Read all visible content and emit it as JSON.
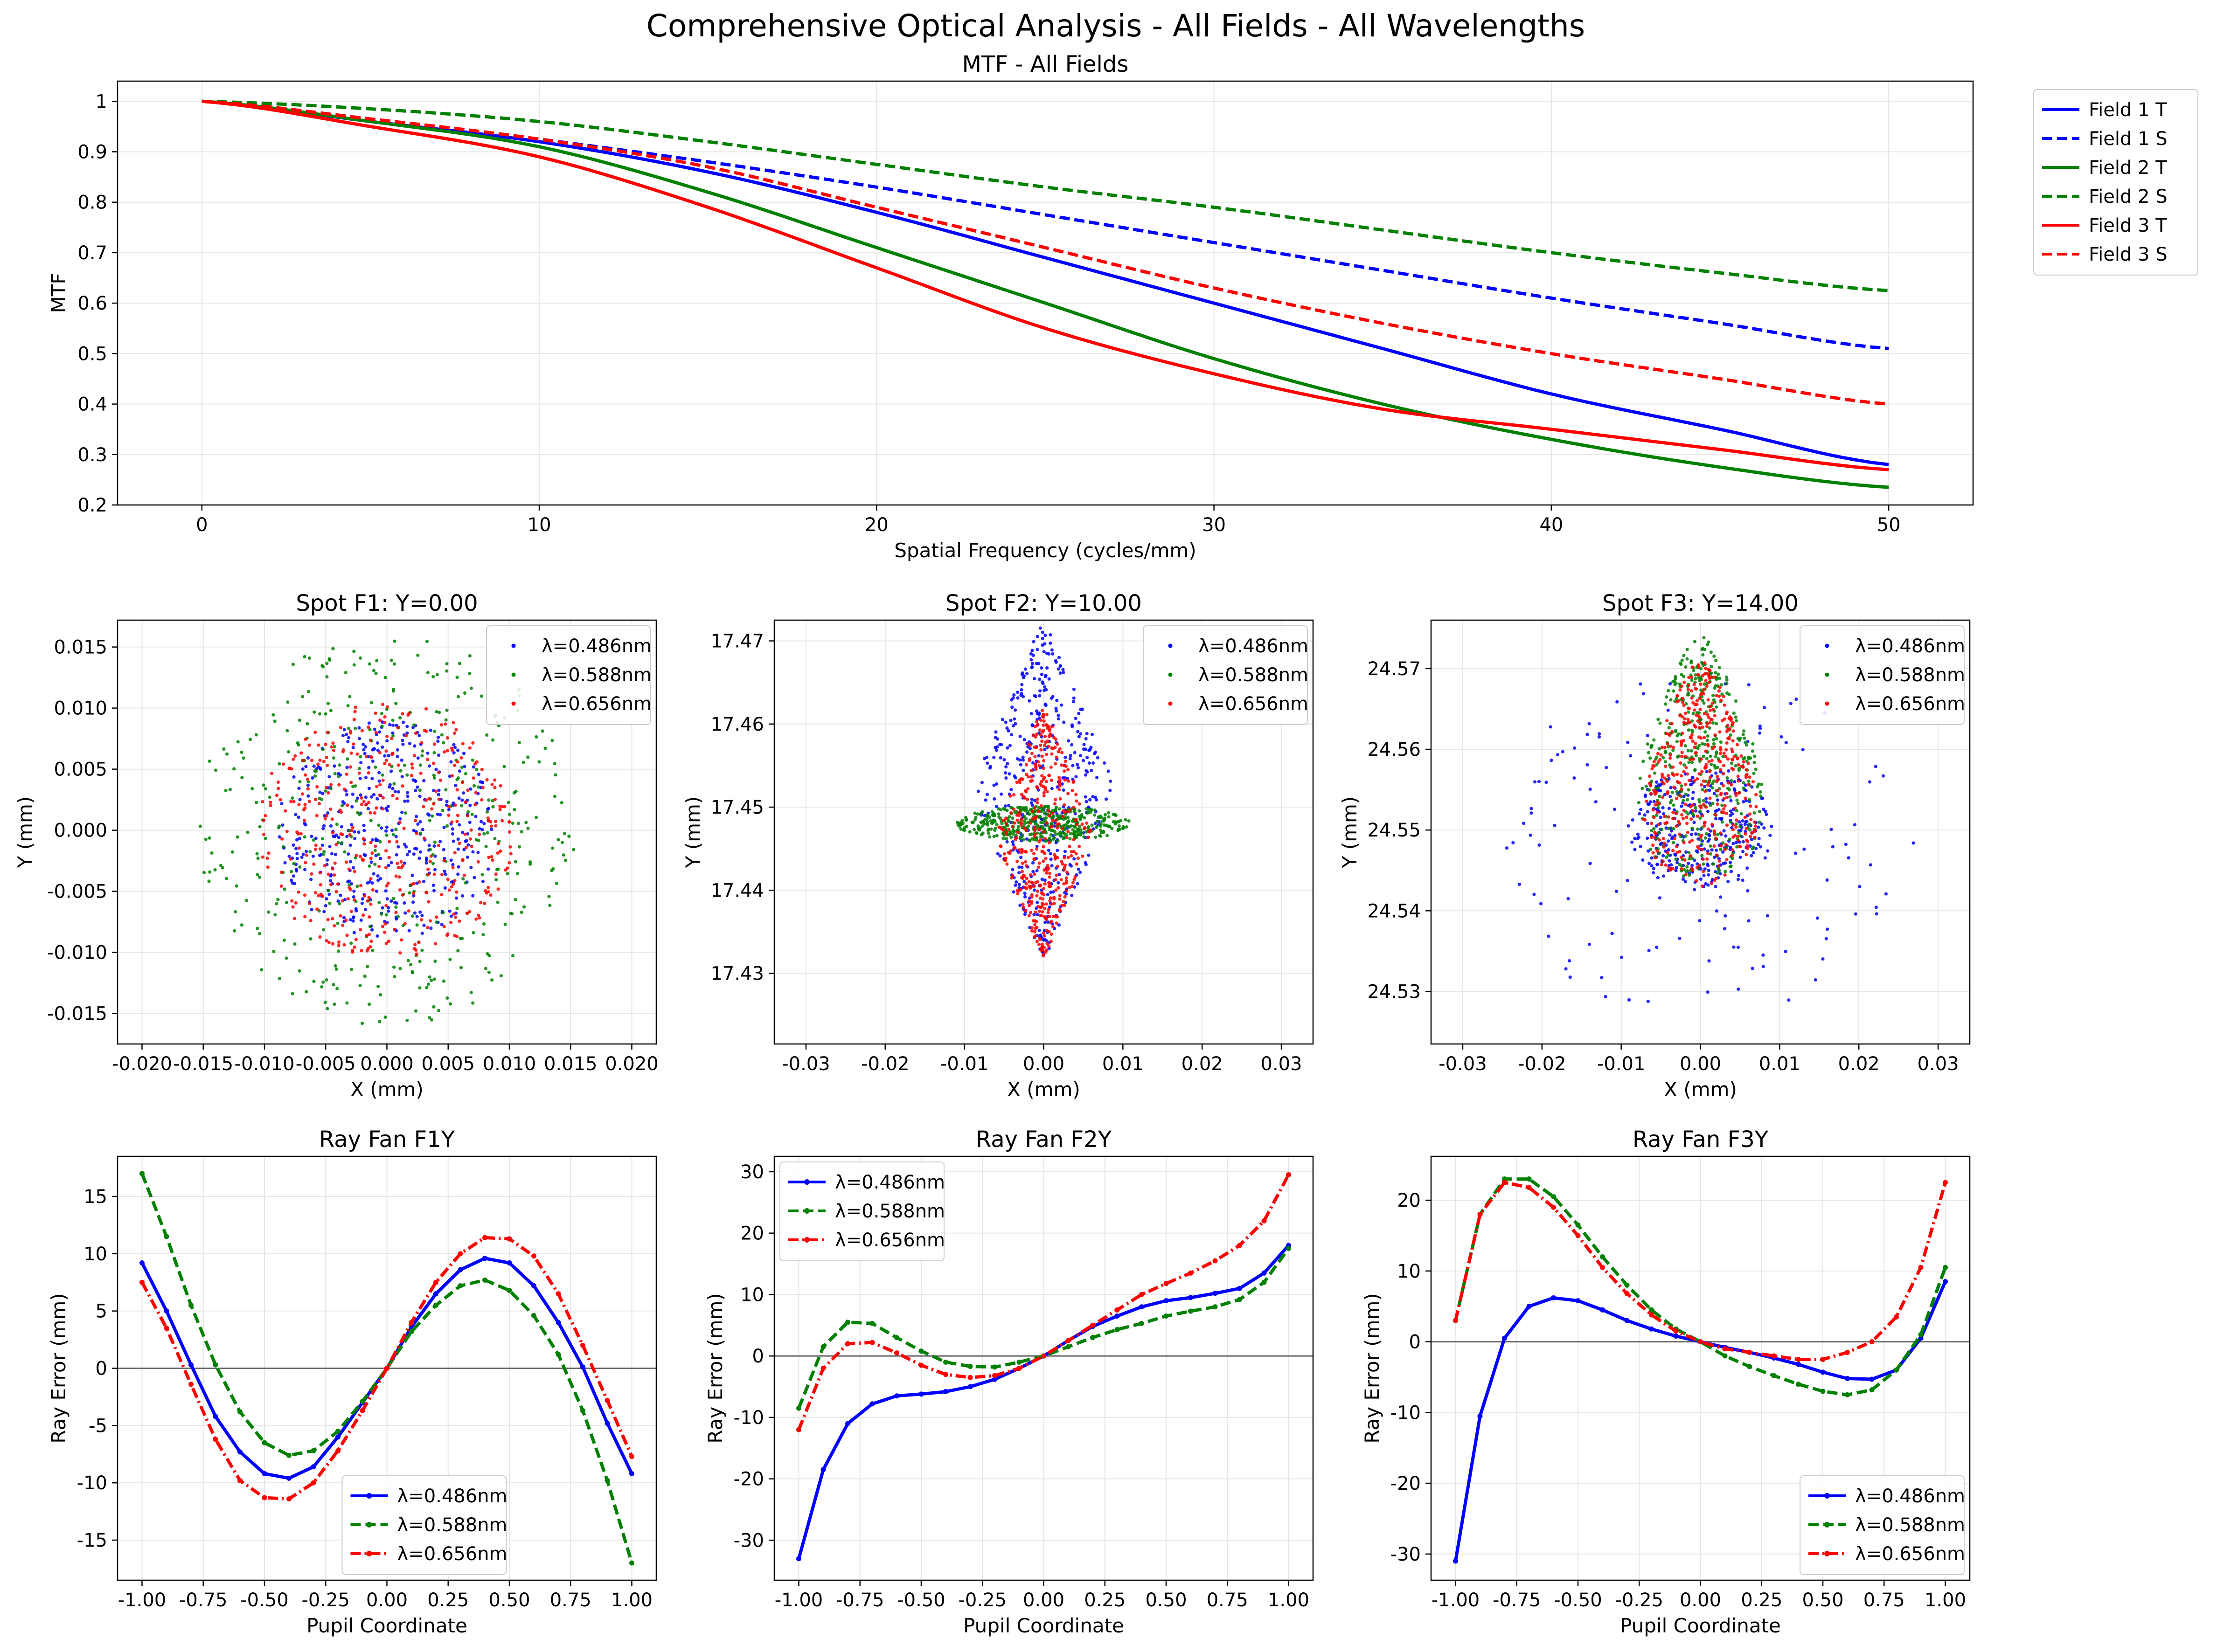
{
  "figure": {
    "title": "Comprehensive Optical Analysis - All Fields - All Wavelengths"
  },
  "chart_data": [
    {
      "id": "mtf",
      "type": "line",
      "title": "MTF - All Fields",
      "xlabel": "Spatial Frequency (cycles/mm)",
      "ylabel": "MTF",
      "xlim": [
        -2.5,
        52.5
      ],
      "ylim": [
        0.2,
        1.04
      ],
      "xticks": [
        0,
        10,
        20,
        30,
        40,
        50
      ],
      "yticks": [
        0.2,
        0.3,
        0.4,
        0.5,
        0.6,
        0.7,
        0.8,
        0.9,
        1.0
      ],
      "grid": true,
      "legend_position": "outside-right",
      "x": [
        0,
        5,
        10,
        15,
        20,
        25,
        30,
        35,
        40,
        45,
        50
      ],
      "series": [
        {
          "name": "Field 1 T",
          "color": "#0000ff",
          "dash": "solid",
          "values": [
            1.0,
            0.96,
            0.92,
            0.86,
            0.78,
            0.69,
            0.6,
            0.51,
            0.42,
            0.35,
            0.28
          ]
        },
        {
          "name": "Field 1 S",
          "color": "#0000ff",
          "dash": "dashed",
          "values": [
            1.0,
            0.965,
            0.925,
            0.88,
            0.83,
            0.775,
            0.72,
            0.665,
            0.61,
            0.56,
            0.51
          ]
        },
        {
          "name": "Field 2 T",
          "color": "#008000",
          "dash": "solid",
          "values": [
            1.0,
            0.96,
            0.91,
            0.82,
            0.71,
            0.6,
            0.49,
            0.4,
            0.33,
            0.275,
            0.235
          ]
        },
        {
          "name": "Field 2 S",
          "color": "#008000",
          "dash": "dashed",
          "values": [
            1.0,
            0.985,
            0.96,
            0.92,
            0.875,
            0.83,
            0.79,
            0.745,
            0.7,
            0.66,
            0.625
          ]
        },
        {
          "name": "Field 3 T",
          "color": "#ff0000",
          "dash": "solid",
          "values": [
            1.0,
            0.95,
            0.89,
            0.79,
            0.67,
            0.55,
            0.46,
            0.39,
            0.35,
            0.31,
            0.27
          ]
        },
        {
          "name": "Field 3 S",
          "color": "#ff0000",
          "dash": "dashed",
          "values": [
            1.0,
            0.965,
            0.925,
            0.87,
            0.79,
            0.71,
            0.63,
            0.56,
            0.5,
            0.45,
            0.4
          ]
        }
      ]
    },
    {
      "id": "spot1",
      "type": "scatter",
      "title": "Spot F1: Y=0.00",
      "xlabel": "X (mm)",
      "ylabel": "Y (mm)",
      "xlim": [
        -0.022,
        0.022
      ],
      "ylim": [
        -0.0175,
        0.0172
      ],
      "xticks": [
        -0.02,
        -0.015,
        -0.01,
        -0.005,
        0,
        0.005,
        0.01,
        0.015,
        0.02
      ],
      "xtick_labels": [
        "-0.020",
        "-0.015",
        "-0.010",
        "-0.005",
        "0.000",
        "0.005",
        "0.010",
        "0.015",
        "0.020"
      ],
      "yticks": [
        -0.015,
        -0.01,
        -0.005,
        0,
        0.005,
        0.01,
        0.015
      ],
      "ytick_labels": [
        "-0.015",
        "-0.010",
        "-0.005",
        "0.000",
        "0.005",
        "0.010",
        "0.015"
      ],
      "grid": true,
      "legend_position": "upper right",
      "series": [
        {
          "name": "λ=0.486nm",
          "color": "#0000ff",
          "cx": 0.0,
          "cy": 0.0,
          "rx": 0.009,
          "ry": 0.009
        },
        {
          "name": "λ=0.588nm",
          "color": "#008000",
          "cx": 0.0,
          "cy": 0.0,
          "rx": 0.0155,
          "ry": 0.016
        },
        {
          "name": "λ=0.656nm",
          "color": "#ff0000",
          "cx": 0.0,
          "cy": 0.0,
          "rx": 0.0105,
          "ry": 0.0105
        }
      ]
    },
    {
      "id": "spot2",
      "type": "scatter",
      "title": "Spot F2: Y=10.00",
      "xlabel": "X (mm)",
      "ylabel": "Y (mm)",
      "xlim": [
        -0.034,
        0.034
      ],
      "ylim": [
        17.4215,
        17.4725
      ],
      "xticks": [
        -0.03,
        -0.02,
        -0.01,
        0,
        0.01,
        0.02,
        0.03
      ],
      "xtick_labels": [
        "-0.03",
        "-0.02",
        "-0.01",
        "0.00",
        "0.01",
        "0.02",
        "0.03"
      ],
      "yticks": [
        17.43,
        17.44,
        17.45,
        17.46,
        17.47
      ],
      "ytick_labels": [
        "17.43",
        "17.44",
        "17.45",
        "17.46",
        "17.47"
      ],
      "grid": true,
      "legend_position": "upper right",
      "series": [
        {
          "name": "λ=0.486nm",
          "color": "#0000ff",
          "cx": 0.0,
          "cy": 17.452,
          "rx": 0.009,
          "ry": 0.02
        },
        {
          "name": "λ=0.588nm",
          "color": "#008000",
          "cx": 0.0,
          "cy": 17.448,
          "rx": 0.011,
          "ry": 0.006
        },
        {
          "name": "λ=0.656nm",
          "color": "#ff0000",
          "cx": 0.0,
          "cy": 17.447,
          "rx": 0.006,
          "ry": 0.015
        }
      ]
    },
    {
      "id": "spot3",
      "type": "scatter",
      "title": "Spot F3: Y=14.00",
      "xlabel": "X (mm)",
      "ylabel": "Y (mm)",
      "xlim": [
        -0.034,
        0.034
      ],
      "ylim": [
        24.5235,
        24.576
      ],
      "xticks": [
        -0.03,
        -0.02,
        -0.01,
        0,
        0.01,
        0.02,
        0.03
      ],
      "xtick_labels": [
        "-0.03",
        "-0.02",
        "-0.01",
        "0.00",
        "0.01",
        "0.02",
        "0.03"
      ],
      "yticks": [
        24.53,
        24.54,
        24.55,
        24.56,
        24.57
      ],
      "ytick_labels": [
        "24.53",
        "24.54",
        "24.55",
        "24.56",
        "24.57"
      ],
      "grid": true,
      "legend_position": "upper right",
      "series": [
        {
          "name": "λ=0.486nm",
          "color": "#0000ff",
          "cx": 0.0,
          "cy": 24.548,
          "rx": 0.027,
          "ry": 0.021
        },
        {
          "name": "λ=0.588nm",
          "color": "#008000",
          "cx": 0.0,
          "cy": 24.559,
          "rx": 0.011,
          "ry": 0.015
        },
        {
          "name": "λ=0.656nm",
          "color": "#ff0000",
          "cx": 0.0,
          "cy": 24.557,
          "rx": 0.01,
          "ry": 0.014
        }
      ]
    },
    {
      "id": "fan1",
      "type": "line",
      "title": "Ray Fan F1Y",
      "xlabel": "Pupil Coordinate",
      "ylabel": "Ray Error (mm)",
      "xlim": [
        -1.1,
        1.1
      ],
      "ylim": [
        -18.5,
        18.5
      ],
      "xticks": [
        -1,
        -0.75,
        -0.5,
        -0.25,
        0,
        0.25,
        0.5,
        0.75,
        1
      ],
      "xtick_labels": [
        "-1.00",
        "-0.75",
        "-0.50",
        "-0.25",
        "0.00",
        "0.25",
        "0.50",
        "0.75",
        "1.00"
      ],
      "yticks": [
        -15,
        -10,
        -5,
        0,
        5,
        10,
        15
      ],
      "grid": true,
      "legend_position": "lower center",
      "x": [
        -1.0,
        -0.9,
        -0.8,
        -0.7,
        -0.6,
        -0.5,
        -0.4,
        -0.3,
        -0.2,
        -0.1,
        0.0,
        0.1,
        0.2,
        0.3,
        0.4,
        0.5,
        0.6,
        0.7,
        0.8,
        0.9,
        1.0
      ],
      "series": [
        {
          "name": "λ=0.486nm",
          "color": "#0000ff",
          "dash": "solid",
          "marker": true,
          "values": [
            9.2,
            5.0,
            0.3,
            -4.2,
            -7.3,
            -9.2,
            -9.6,
            -8.6,
            -6.0,
            -3.0,
            0.0,
            3.6,
            6.5,
            8.6,
            9.6,
            9.2,
            7.2,
            4.0,
            0.1,
            -4.8,
            -9.2
          ]
        },
        {
          "name": "λ=0.588nm",
          "color": "#008000",
          "dash": "dashed",
          "marker": true,
          "values": [
            17.0,
            11.5,
            5.5,
            0.3,
            -3.8,
            -6.5,
            -7.6,
            -7.2,
            -5.5,
            -2.9,
            0.0,
            3.2,
            5.5,
            7.2,
            7.7,
            6.8,
            4.6,
            1.2,
            -3.7,
            -9.8,
            -17.0
          ]
        },
        {
          "name": "λ=0.656nm",
          "color": "#ff0000",
          "dash": "dashdot",
          "marker": true,
          "values": [
            7.5,
            3.5,
            -1.4,
            -6.2,
            -9.8,
            -11.3,
            -11.4,
            -10.0,
            -7.2,
            -3.7,
            0.0,
            4.0,
            7.5,
            10.0,
            11.4,
            11.3,
            9.8,
            6.5,
            2.0,
            -2.8,
            -7.7
          ]
        }
      ]
    },
    {
      "id": "fan2",
      "type": "line",
      "title": "Ray Fan F2Y",
      "xlabel": "Pupil Coordinate",
      "ylabel": "Ray Error (mm)",
      "xlim": [
        -1.1,
        1.1
      ],
      "ylim": [
        -36.5,
        32.5
      ],
      "xticks": [
        -1,
        -0.75,
        -0.5,
        -0.25,
        0,
        0.25,
        0.5,
        0.75,
        1
      ],
      "xtick_labels": [
        "-1.00",
        "-0.75",
        "-0.50",
        "-0.25",
        "0.00",
        "0.25",
        "0.50",
        "0.75",
        "1.00"
      ],
      "yticks": [
        -30,
        -20,
        -10,
        0,
        10,
        20,
        30
      ],
      "grid": true,
      "legend_position": "upper left",
      "x": [
        -1.0,
        -0.9,
        -0.8,
        -0.7,
        -0.6,
        -0.5,
        -0.4,
        -0.3,
        -0.2,
        -0.1,
        0.0,
        0.1,
        0.2,
        0.3,
        0.4,
        0.5,
        0.6,
        0.7,
        0.8,
        0.9,
        1.0
      ],
      "series": [
        {
          "name": "λ=0.486nm",
          "color": "#0000ff",
          "dash": "solid",
          "marker": true,
          "values": [
            -33.0,
            -18.5,
            -11.0,
            -7.8,
            -6.5,
            -6.2,
            -5.8,
            -5.0,
            -3.8,
            -2.0,
            0.0,
            2.5,
            4.8,
            6.5,
            8.0,
            9.0,
            9.5,
            10.2,
            11.0,
            13.5,
            18.0
          ]
        },
        {
          "name": "λ=0.588nm",
          "color": "#008000",
          "dash": "dashed",
          "marker": true,
          "values": [
            -8.5,
            1.5,
            5.5,
            5.3,
            3.0,
            0.8,
            -1.0,
            -1.7,
            -1.8,
            -1.0,
            0.0,
            1.5,
            3.0,
            4.3,
            5.3,
            6.5,
            7.3,
            8.0,
            9.2,
            12.0,
            17.5
          ]
        },
        {
          "name": "λ=0.656nm",
          "color": "#ff0000",
          "dash": "dashdot",
          "marker": true,
          "values": [
            -12.0,
            -2.0,
            2.0,
            2.2,
            0.5,
            -1.5,
            -3.0,
            -3.5,
            -3.2,
            -2.0,
            0.0,
            2.5,
            5.0,
            7.5,
            10.0,
            11.8,
            13.5,
            15.5,
            18.0,
            22.0,
            29.5
          ]
        }
      ]
    },
    {
      "id": "fan3",
      "type": "line",
      "title": "Ray Fan F3Y",
      "xlabel": "Pupil Coordinate",
      "ylabel": "Ray Error (mm)",
      "xlim": [
        -1.1,
        1.1
      ],
      "ylim": [
        -33.7,
        26.2
      ],
      "xticks": [
        -1,
        -0.75,
        -0.5,
        -0.25,
        0,
        0.25,
        0.5,
        0.75,
        1
      ],
      "xtick_labels": [
        "-1.00",
        "-0.75",
        "-0.50",
        "-0.25",
        "0.00",
        "0.25",
        "0.50",
        "0.75",
        "1.00"
      ],
      "yticks": [
        -30,
        -20,
        -10,
        0,
        10,
        20
      ],
      "grid": true,
      "legend_position": "lower right",
      "x": [
        -1.0,
        -0.9,
        -0.8,
        -0.7,
        -0.6,
        -0.5,
        -0.4,
        -0.3,
        -0.2,
        -0.1,
        0.0,
        0.1,
        0.2,
        0.3,
        0.4,
        0.5,
        0.6,
        0.7,
        0.8,
        0.9,
        1.0
      ],
      "series": [
        {
          "name": "λ=0.486nm",
          "color": "#0000ff",
          "dash": "solid",
          "marker": true,
          "values": [
            -31.0,
            -10.5,
            0.5,
            5.0,
            6.2,
            5.8,
            4.5,
            3.0,
            1.8,
            0.8,
            0.0,
            -0.8,
            -1.5,
            -2.3,
            -3.2,
            -4.3,
            -5.2,
            -5.3,
            -4.0,
            0.5,
            8.5
          ]
        },
        {
          "name": "λ=0.588nm",
          "color": "#008000",
          "dash": "dashed",
          "marker": true,
          "values": [
            3.0,
            18.0,
            23.0,
            23.0,
            20.5,
            16.5,
            12.0,
            8.0,
            4.5,
            1.8,
            0.0,
            -2.0,
            -3.5,
            -4.8,
            -6.0,
            -7.0,
            -7.5,
            -6.8,
            -4.0,
            1.0,
            10.5
          ]
        },
        {
          "name": "λ=0.656nm",
          "color": "#ff0000",
          "dash": "dashdot",
          "marker": true,
          "values": [
            3.0,
            18.0,
            22.5,
            21.8,
            19.0,
            15.0,
            10.5,
            6.8,
            3.8,
            1.5,
            0.0,
            -1.0,
            -1.5,
            -2.0,
            -2.5,
            -2.5,
            -1.5,
            0.0,
            3.5,
            10.5,
            22.5
          ]
        }
      ]
    }
  ]
}
